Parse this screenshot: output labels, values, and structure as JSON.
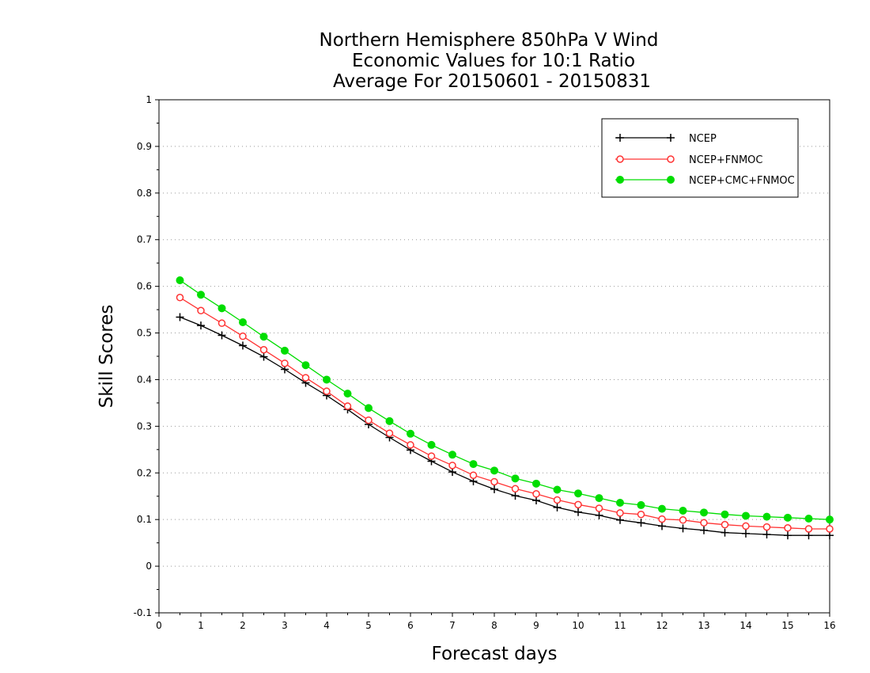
{
  "chart_data": {
    "type": "line",
    "title": [
      "Northern Hemisphere 850hPa V Wind",
      "Economic Values for 10:1 Ratio",
      "Average For 20150601 - 20150831"
    ],
    "xlabel": "Forecast days",
    "ylabel": "Skill Scores",
    "xlim": [
      0,
      16
    ],
    "ylim": [
      -0.1,
      1
    ],
    "xticks": [
      0,
      1,
      2,
      3,
      4,
      5,
      6,
      7,
      8,
      9,
      10,
      11,
      12,
      13,
      14,
      15,
      16
    ],
    "yticks": [
      -0.1,
      0,
      0.1,
      0.2,
      0.3,
      0.4,
      0.5,
      0.6,
      0.7,
      0.8,
      0.9,
      1
    ],
    "ytick_labels": [
      "-0.1",
      "0",
      "0.1",
      "0.2",
      "0.3",
      "0.4",
      "0.5",
      "0.6",
      "0.7",
      "0.8",
      "0.9",
      "1"
    ],
    "grid": "horizontal dotted",
    "legend_position": "top-right",
    "x": [
      0.5,
      1,
      1.5,
      2,
      2.5,
      3,
      3.5,
      4,
      4.5,
      5,
      5.5,
      6,
      6.5,
      7,
      7.5,
      8,
      8.5,
      9,
      9.5,
      10,
      10.5,
      11,
      11.5,
      12,
      12.5,
      13,
      13.5,
      14,
      14.5,
      15,
      15.5,
      16
    ],
    "series": [
      {
        "name": "NCEP",
        "color": "#000000",
        "marker": "plus",
        "values": [
          0.534,
          0.516,
          0.495,
          0.473,
          0.449,
          0.422,
          0.393,
          0.366,
          0.336,
          0.304,
          0.276,
          0.249,
          0.225,
          0.202,
          0.182,
          0.165,
          0.151,
          0.141,
          0.126,
          0.116,
          0.109,
          0.099,
          0.093,
          0.086,
          0.081,
          0.077,
          0.072,
          0.07,
          0.068,
          0.066,
          0.066,
          0.066
        ]
      },
      {
        "name": "NCEP+FNMOC",
        "color": "#ff3333",
        "marker": "open-circle",
        "values": [
          0.576,
          0.548,
          0.521,
          0.493,
          0.464,
          0.435,
          0.404,
          0.375,
          0.343,
          0.313,
          0.285,
          0.26,
          0.236,
          0.216,
          0.195,
          0.181,
          0.166,
          0.155,
          0.142,
          0.132,
          0.124,
          0.114,
          0.111,
          0.101,
          0.099,
          0.093,
          0.089,
          0.086,
          0.084,
          0.082,
          0.08,
          0.08
        ]
      },
      {
        "name": "NCEP+CMC+FNMOC",
        "color": "#00dd00",
        "marker": "filled-circle",
        "values": [
          0.613,
          0.582,
          0.553,
          0.523,
          0.492,
          0.462,
          0.431,
          0.4,
          0.37,
          0.339,
          0.311,
          0.284,
          0.26,
          0.239,
          0.219,
          0.205,
          0.188,
          0.177,
          0.164,
          0.156,
          0.146,
          0.136,
          0.131,
          0.123,
          0.119,
          0.115,
          0.111,
          0.108,
          0.106,
          0.104,
          0.102,
          0.1
        ]
      }
    ]
  }
}
